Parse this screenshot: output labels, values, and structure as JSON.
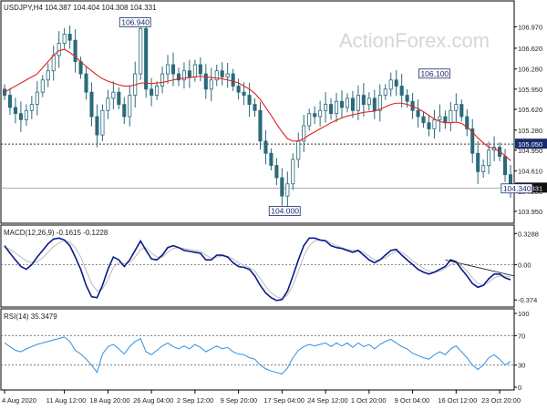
{
  "chart_data": {
    "type": "candlestick",
    "header": "USDJPY,H4  104.387 104.404 104.308 104.331",
    "watermark": "ActionForex.com",
    "colors": {
      "candle": "#2a6a7a",
      "ma": "#e02020",
      "macd": "#0a1a8a",
      "macd_signal": "#bbbbbb",
      "rsi": "#2f8fe0",
      "box": "#1a2a6c"
    },
    "price_panel": {
      "ylim": [
        103.8,
        107.2
      ],
      "y_ticks": [
        "106.970",
        "106.620",
        "106.280",
        "105.950",
        "105.620",
        "105.280",
        "104.950",
        "104.610",
        "104.280",
        "103.950"
      ],
      "y_tick_values": [
        106.97,
        106.62,
        106.28,
        105.95,
        105.62,
        105.28,
        104.95,
        104.61,
        104.28,
        103.95
      ],
      "current_price": "104.331",
      "current_value": 104.331,
      "level_line": "105.050",
      "level_value": 105.05,
      "annotations": [
        {
          "text": "106.940",
          "x": 24,
          "y": 106.94
        },
        {
          "text": "106.100",
          "x": 79,
          "y": 106.1
        },
        {
          "text": "105.050",
          "x": 103,
          "y": 105.05
        },
        {
          "text": "104.340",
          "x": 98,
          "y": 104.34
        },
        {
          "text": "104.000",
          "x": 55,
          "y": 104.0
        }
      ],
      "close": [
        105.85,
        105.65,
        105.55,
        105.45,
        105.6,
        105.7,
        105.9,
        106.1,
        106.25,
        106.5,
        106.7,
        106.85,
        106.75,
        106.4,
        106.2,
        105.9,
        105.5,
        105.2,
        105.6,
        105.8,
        105.9,
        105.7,
        105.5,
        105.85,
        106.2,
        106.94,
        105.95,
        105.85,
        106.0,
        106.2,
        106.35,
        106.2,
        106.1,
        106.25,
        106.15,
        106.35,
        106.2,
        105.95,
        106.1,
        106.25,
        106.15,
        106.2,
        106.0,
        105.9,
        105.85,
        105.7,
        105.6,
        105.1,
        104.9,
        104.7,
        104.5,
        104.2,
        104.4,
        104.8,
        105.1,
        105.35,
        105.55,
        105.5,
        105.6,
        105.7,
        105.55,
        105.75,
        105.65,
        105.8,
        105.6,
        105.85,
        105.7,
        105.8,
        105.6,
        105.85,
        105.95,
        106.1,
        106.0,
        105.85,
        105.75,
        105.6,
        105.5,
        105.4,
        105.3,
        105.45,
        105.5,
        105.4,
        105.6,
        105.7,
        105.5,
        105.3,
        104.9,
        104.6,
        104.7,
        104.95,
        105.0,
        104.85,
        104.55,
        104.33
      ],
      "ma": [
        105.9,
        105.95,
        106.0,
        106.05,
        106.1,
        106.15,
        106.2,
        106.3,
        106.4,
        106.5,
        106.58,
        106.6,
        106.55,
        106.48,
        106.4,
        106.32,
        106.25,
        106.18,
        106.12,
        106.08,
        106.05,
        106.02,
        106.0,
        106.0,
        106.02,
        106.05,
        106.05,
        106.04,
        106.05,
        106.06,
        106.08,
        106.1,
        106.12,
        106.13,
        106.14,
        106.15,
        106.16,
        106.15,
        106.14,
        106.13,
        106.12,
        106.1,
        106.08,
        106.05,
        106.0,
        105.95,
        105.88,
        105.78,
        105.65,
        105.52,
        105.38,
        105.25,
        105.14,
        105.1,
        105.1,
        105.14,
        105.2,
        105.25,
        105.3,
        105.35,
        105.4,
        105.44,
        105.48,
        105.51,
        105.53,
        105.55,
        105.57,
        105.58,
        105.59,
        105.62,
        105.66,
        105.7,
        105.72,
        105.72,
        105.7,
        105.67,
        105.63,
        105.58,
        105.52,
        105.46,
        105.42,
        105.4,
        105.4,
        105.41,
        105.39,
        105.33,
        105.25,
        105.15,
        105.07,
        105.0,
        104.98,
        104.93,
        104.86,
        104.78
      ]
    },
    "macd_panel": {
      "label": "MACD(12,26,9) -0.1615 -0.1228",
      "ylim": [
        -0.42,
        0.37
      ],
      "y_ticks": [
        "0.3288",
        "0.00",
        "-0.374"
      ],
      "y_tick_values": [
        0.3288,
        0.0,
        -0.374
      ],
      "macd": [
        0.2,
        0.12,
        0.05,
        -0.02,
        -0.05,
        0.0,
        0.08,
        0.15,
        0.22,
        0.27,
        0.28,
        0.26,
        0.2,
        0.08,
        -0.05,
        -0.22,
        -0.34,
        -0.35,
        -0.22,
        -0.05,
        0.08,
        0.05,
        -0.02,
        0.05,
        0.15,
        0.25,
        0.15,
        0.06,
        0.05,
        0.1,
        0.18,
        0.2,
        0.18,
        0.15,
        0.14,
        0.13,
        0.12,
        0.05,
        0.05,
        0.1,
        0.1,
        0.08,
        0.02,
        -0.02,
        -0.03,
        -0.05,
        -0.12,
        -0.22,
        -0.3,
        -0.35,
        -0.38,
        -0.37,
        -0.28,
        -0.12,
        0.05,
        0.2,
        0.28,
        0.28,
        0.26,
        0.25,
        0.2,
        0.18,
        0.17,
        0.15,
        0.13,
        0.15,
        0.1,
        0.05,
        0.02,
        0.05,
        0.1,
        0.15,
        0.16,
        0.1,
        0.05,
        0.0,
        -0.05,
        -0.08,
        -0.1,
        -0.08,
        -0.05,
        -0.02,
        0.05,
        0.03,
        -0.05,
        -0.12,
        -0.2,
        -0.24,
        -0.22,
        -0.15,
        -0.1,
        -0.1,
        -0.14,
        -0.16
      ],
      "signal": [
        0.18,
        0.16,
        0.12,
        0.08,
        0.04,
        0.02,
        0.03,
        0.07,
        0.13,
        0.19,
        0.23,
        0.25,
        0.24,
        0.18,
        0.08,
        -0.06,
        -0.2,
        -0.28,
        -0.26,
        -0.16,
        -0.03,
        0.02,
        0.01,
        0.02,
        0.08,
        0.16,
        0.18,
        0.12,
        0.08,
        0.08,
        0.13,
        0.17,
        0.18,
        0.17,
        0.16,
        0.15,
        0.14,
        0.1,
        0.07,
        0.08,
        0.09,
        0.09,
        0.06,
        0.02,
        -0.01,
        -0.03,
        -0.07,
        -0.15,
        -0.23,
        -0.3,
        -0.34,
        -0.36,
        -0.32,
        -0.22,
        -0.07,
        0.09,
        0.2,
        0.25,
        0.26,
        0.26,
        0.23,
        0.2,
        0.18,
        0.16,
        0.15,
        0.15,
        0.13,
        0.09,
        0.05,
        0.05,
        0.07,
        0.11,
        0.14,
        0.13,
        0.09,
        0.04,
        0.0,
        -0.04,
        -0.07,
        -0.08,
        -0.07,
        -0.04,
        0.0,
        0.02,
        -0.01,
        -0.07,
        -0.14,
        -0.2,
        -0.22,
        -0.19,
        -0.14,
        -0.12,
        -0.12,
        -0.13
      ]
    },
    "rsi_panel": {
      "label": "RSI(14) 35.3479",
      "ylim": [
        0,
        100
      ],
      "y_ticks": [
        "100",
        "70",
        "30",
        "0"
      ],
      "y_tick_values": [
        100,
        70,
        30,
        0
      ],
      "rsi": [
        60,
        55,
        50,
        48,
        52,
        55,
        58,
        60,
        62,
        64,
        66,
        68,
        62,
        50,
        45,
        38,
        30,
        20,
        45,
        55,
        58,
        52,
        45,
        55,
        62,
        66,
        48,
        44,
        50,
        56,
        60,
        55,
        52,
        56,
        52,
        58,
        54,
        48,
        52,
        56,
        52,
        54,
        48,
        45,
        44,
        40,
        38,
        30,
        25,
        22,
        20,
        18,
        26,
        40,
        50,
        55,
        58,
        56,
        58,
        60,
        55,
        60,
        56,
        60,
        54,
        60,
        55,
        58,
        52,
        58,
        62,
        65,
        60,
        55,
        52,
        46,
        43,
        40,
        38,
        44,
        48,
        44,
        52,
        56,
        48,
        40,
        30,
        24,
        30,
        40,
        44,
        38,
        30,
        35
      ]
    },
    "x_ticks": [
      "4 Aug 2020",
      "11 Aug 12:00",
      "18 Aug 20:00",
      "26 Aug 04:00",
      "2 Sep 12:00",
      "9 Sep 20:00",
      "17 Sep 04:00",
      "24 Sep 12:00",
      "1 Oct 20:00",
      "9 Oct 04:00",
      "16 Oct 12:00",
      "23 Oct 20:00"
    ],
    "x_tick_index": [
      0,
      11,
      19,
      27,
      35,
      43,
      51,
      59,
      67,
      75,
      83,
      91
    ]
  }
}
